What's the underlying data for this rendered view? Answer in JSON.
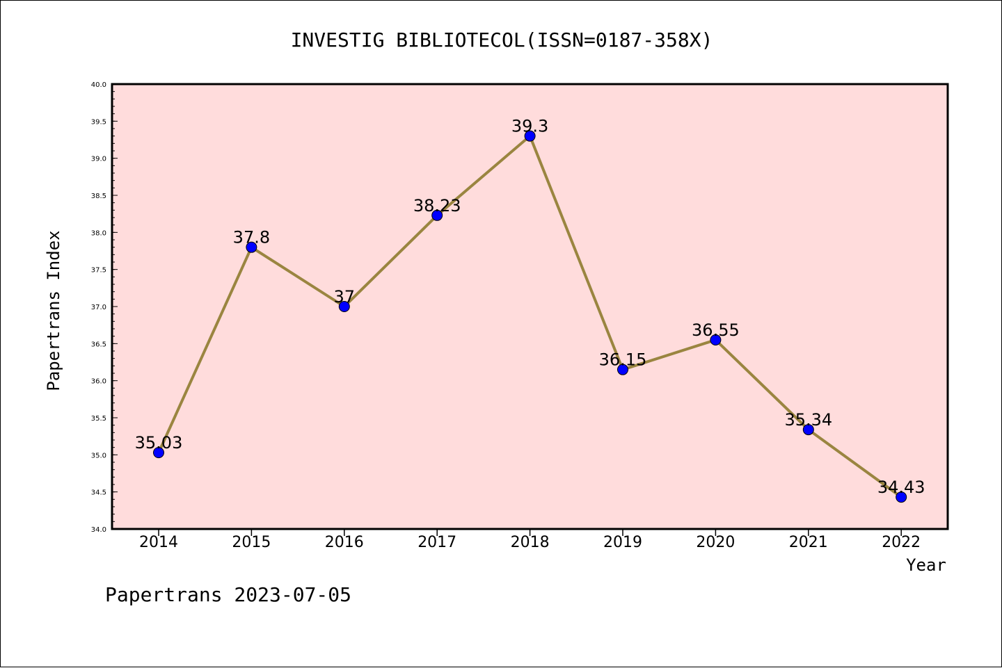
{
  "chart_data": {
    "type": "line",
    "title": "INVESTIG BIBLIOTECOL(ISSN=0187-358X)",
    "xlabel": "Year",
    "ylabel": "Papertrans Index",
    "categories": [
      "2014",
      "2015",
      "2016",
      "2017",
      "2018",
      "2019",
      "2020",
      "2021",
      "2022"
    ],
    "series": [
      {
        "values": [
          35.03,
          37.8,
          37,
          38.23,
          39.3,
          36.15,
          36.55,
          35.34,
          34.43
        ],
        "labels": [
          "35.03",
          "37.8",
          "37",
          "38.23",
          "39.3",
          "36.15",
          "36.55",
          "35.34",
          "34.43"
        ]
      }
    ],
    "ylim": [
      34.0,
      40.0
    ],
    "yticks": [
      "34.0",
      "34.5",
      "35.0",
      "35.5",
      "36.0",
      "36.5",
      "37.0",
      "37.5",
      "38.0",
      "38.5",
      "39.0",
      "39.5",
      "40.0"
    ],
    "grid": false,
    "legend": "none"
  },
  "footer": "Papertrans 2023-07-05",
  "colors": {
    "plot_background": "#ffdcdc",
    "line": "#9a8540",
    "marker": "#0000ff",
    "axis": "#000000"
  }
}
